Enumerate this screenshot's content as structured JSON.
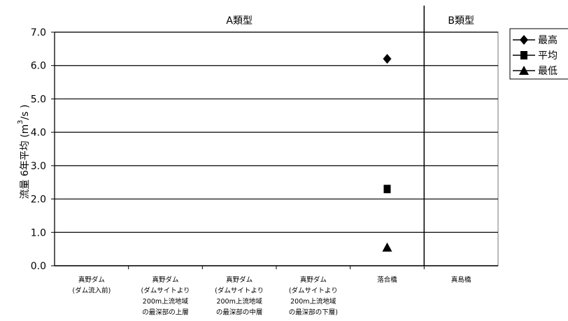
{
  "chart_data": {
    "type": "scatter",
    "title": "",
    "xlabel": "",
    "ylabel": "流量 6年平均 (m",
    "ylabel_sup": "3",
    "ylabel_tail": "/s )",
    "ylim": [
      0,
      7
    ],
    "yticks": [
      "0.0",
      "1.0",
      "2.0",
      "3.0",
      "4.0",
      "5.0",
      "6.0",
      "7.0"
    ],
    "grid": true,
    "legend_position": "right",
    "groups": [
      {
        "label": "A類型",
        "span": [
          0,
          5
        ]
      },
      {
        "label": "B類型",
        "span": [
          5,
          6
        ]
      }
    ],
    "categories": [
      [
        "真野ダム",
        "(ダム流入前)"
      ],
      [
        "真野ダム",
        "(ダムサイトより",
        "200m上流地域",
        "の最深部の上層"
      ],
      [
        "真野ダム",
        "(ダムサイトより",
        "200m上流地域",
        "の最深部の中層"
      ],
      [
        "真野ダム",
        "(ダムサイトより",
        "200m上流地域",
        "の最深部の下層)"
      ],
      [
        "落合橋"
      ],
      [
        "真島橋"
      ]
    ],
    "series": [
      {
        "name": "最高",
        "marker": "diamond",
        "values": [
          null,
          null,
          null,
          null,
          6.2,
          null
        ]
      },
      {
        "name": "平均",
        "marker": "square",
        "values": [
          null,
          null,
          null,
          null,
          2.3,
          null
        ]
      },
      {
        "name": "最低",
        "marker": "triangle",
        "values": [
          null,
          null,
          null,
          null,
          0.55,
          null
        ]
      }
    ]
  }
}
